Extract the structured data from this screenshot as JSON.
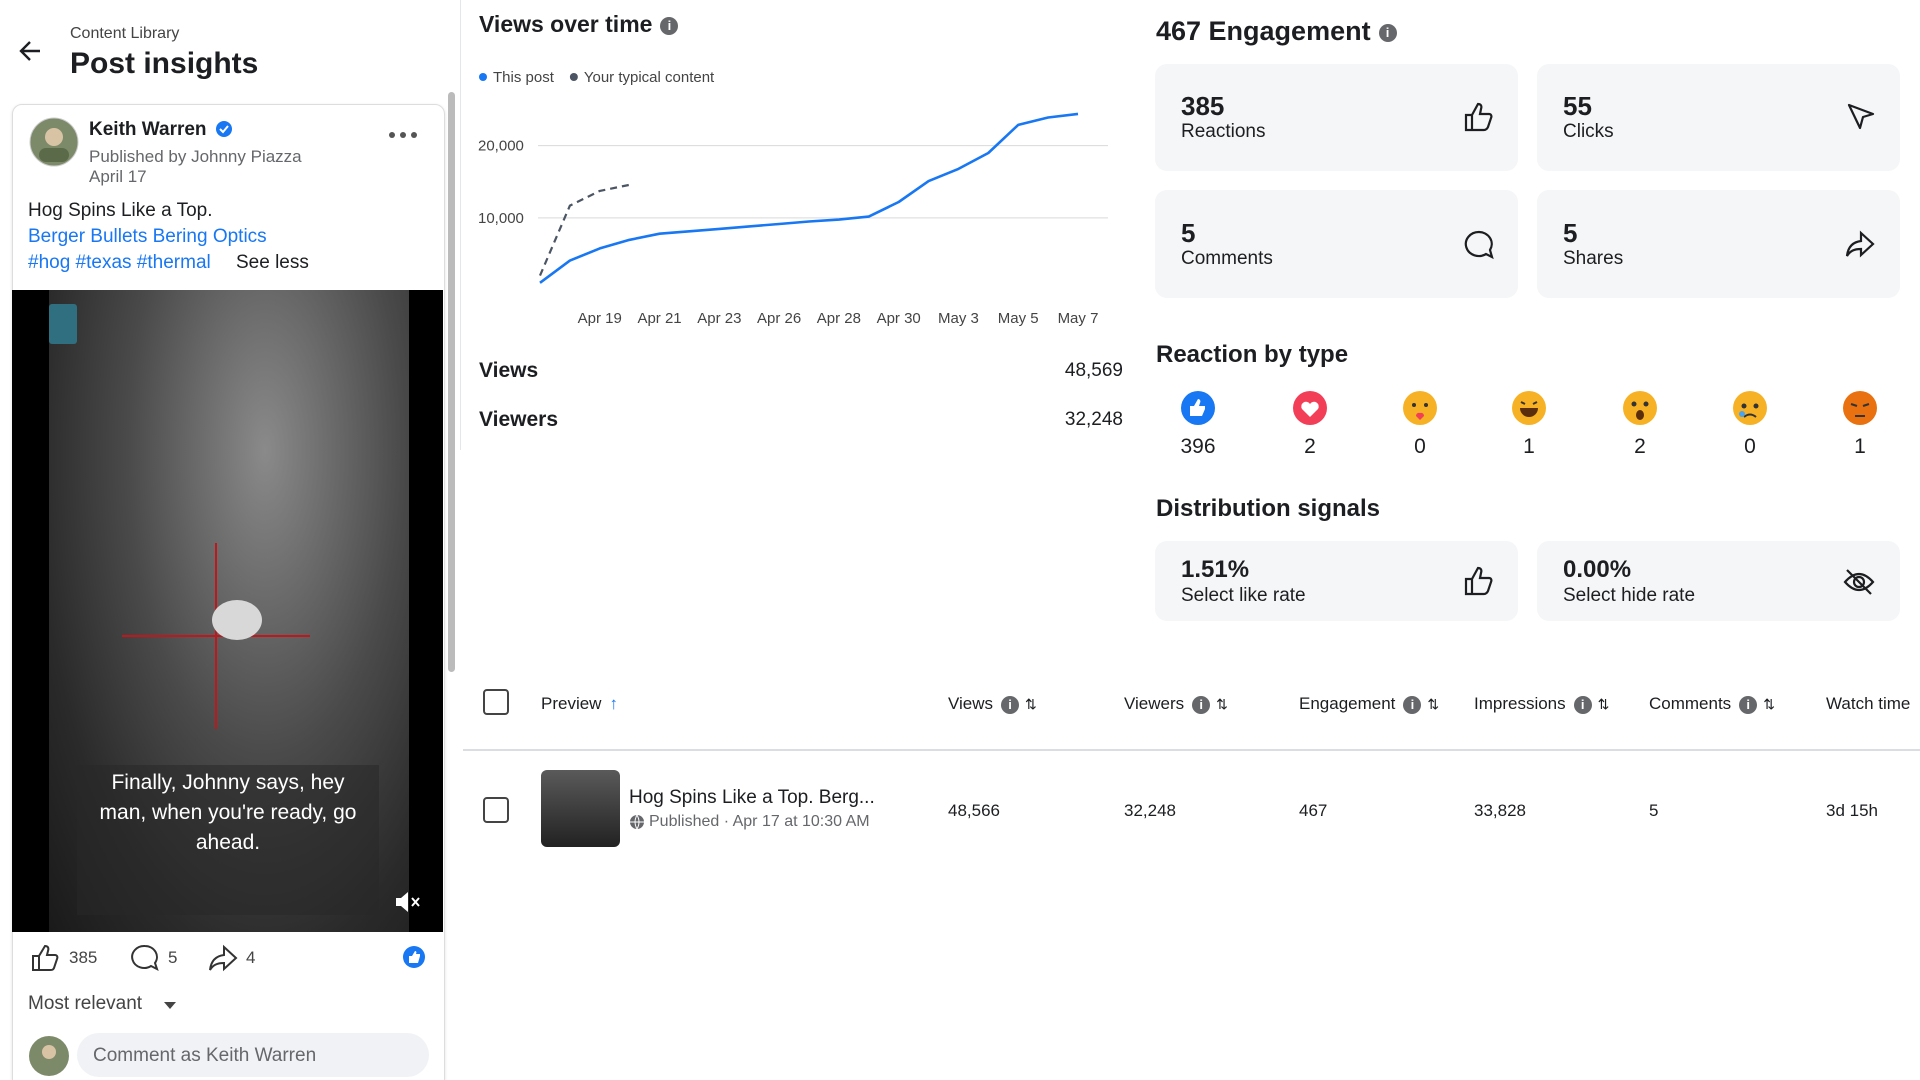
{
  "header": {
    "breadcrumb": "Content Library",
    "title": "Post insights"
  },
  "post": {
    "author": "Keith Warren",
    "published_by": "Published by Johnny Piazza",
    "date": "April 17",
    "text": "Hog Spins Like a Top.",
    "links": "Berger Bullets Bering Optics",
    "hashtags": "#hog #texas #thermal",
    "see_less": "See less",
    "caption": "Finally, Johnny says, hey man, when you're ready, go ahead.",
    "likes": "385",
    "comments": "5",
    "shares": "4",
    "sort": "Most relevant",
    "comment_placeholder": "Comment as Keith Warren"
  },
  "chart_data": {
    "type": "line",
    "title": "Views over time",
    "categories": [
      null,
      null,
      "Apr 19",
      null,
      "Apr 21",
      null,
      "Apr 23",
      null,
      "Apr 26",
      null,
      "Apr 28",
      null,
      "Apr 30",
      null,
      "May 3",
      null,
      "May 5",
      null,
      "May 7"
    ],
    "series": [
      {
        "name": "This post",
        "color": "#1877f2",
        "values": [
          1000,
          4070,
          5760,
          6950,
          7800,
          8140,
          8470,
          8810,
          9150,
          9490,
          9750,
          10170,
          12200,
          15090,
          16780,
          18980,
          22880,
          23900,
          24400
        ]
      },
      {
        "name": "Your typical content",
        "color": "#4b5563",
        "dashed": true,
        "values": [
          2000,
          11700,
          13730,
          14580,
          null,
          null,
          null,
          null,
          null,
          null,
          null,
          null,
          null,
          null,
          null,
          null,
          null,
          null,
          null
        ]
      }
    ],
    "ylim": [
      0,
      25000
    ],
    "yticks": [
      {
        "value": 10000,
        "label": "10,000"
      },
      {
        "value": 20000,
        "label": "20,000"
      }
    ],
    "grid": true
  },
  "views_summary": [
    {
      "label": "Views",
      "value": "48,569"
    },
    {
      "label": "Viewers",
      "value": "32,248"
    }
  ],
  "engagement": {
    "title": "467 Engagement",
    "cards": [
      {
        "value": "385",
        "label": "Reactions"
      },
      {
        "value": "55",
        "label": "Clicks"
      },
      {
        "value": "5",
        "label": "Comments"
      },
      {
        "value": "5",
        "label": "Shares"
      }
    ]
  },
  "reactions": {
    "title": "Reaction by type",
    "counts": [
      396,
      2,
      0,
      1,
      2,
      0,
      1
    ]
  },
  "distribution": {
    "title": "Distribution signals",
    "cards": [
      {
        "value": "1.51%",
        "label": "Select like rate"
      },
      {
        "value": "0.00%",
        "label": "Select hide rate"
      }
    ]
  },
  "table": {
    "columns": [
      "Preview",
      "Views",
      "Viewers",
      "Engagement",
      "Impressions",
      "Comments",
      "Watch time"
    ],
    "rows": [
      {
        "title": "Hog Spins Like a Top. Berg...",
        "meta": "Published · Apr 17 at 10:30 AM",
        "cells": [
          "48,566",
          "32,248",
          "467",
          "33,828",
          "5",
          "3d 15h"
        ]
      }
    ]
  }
}
